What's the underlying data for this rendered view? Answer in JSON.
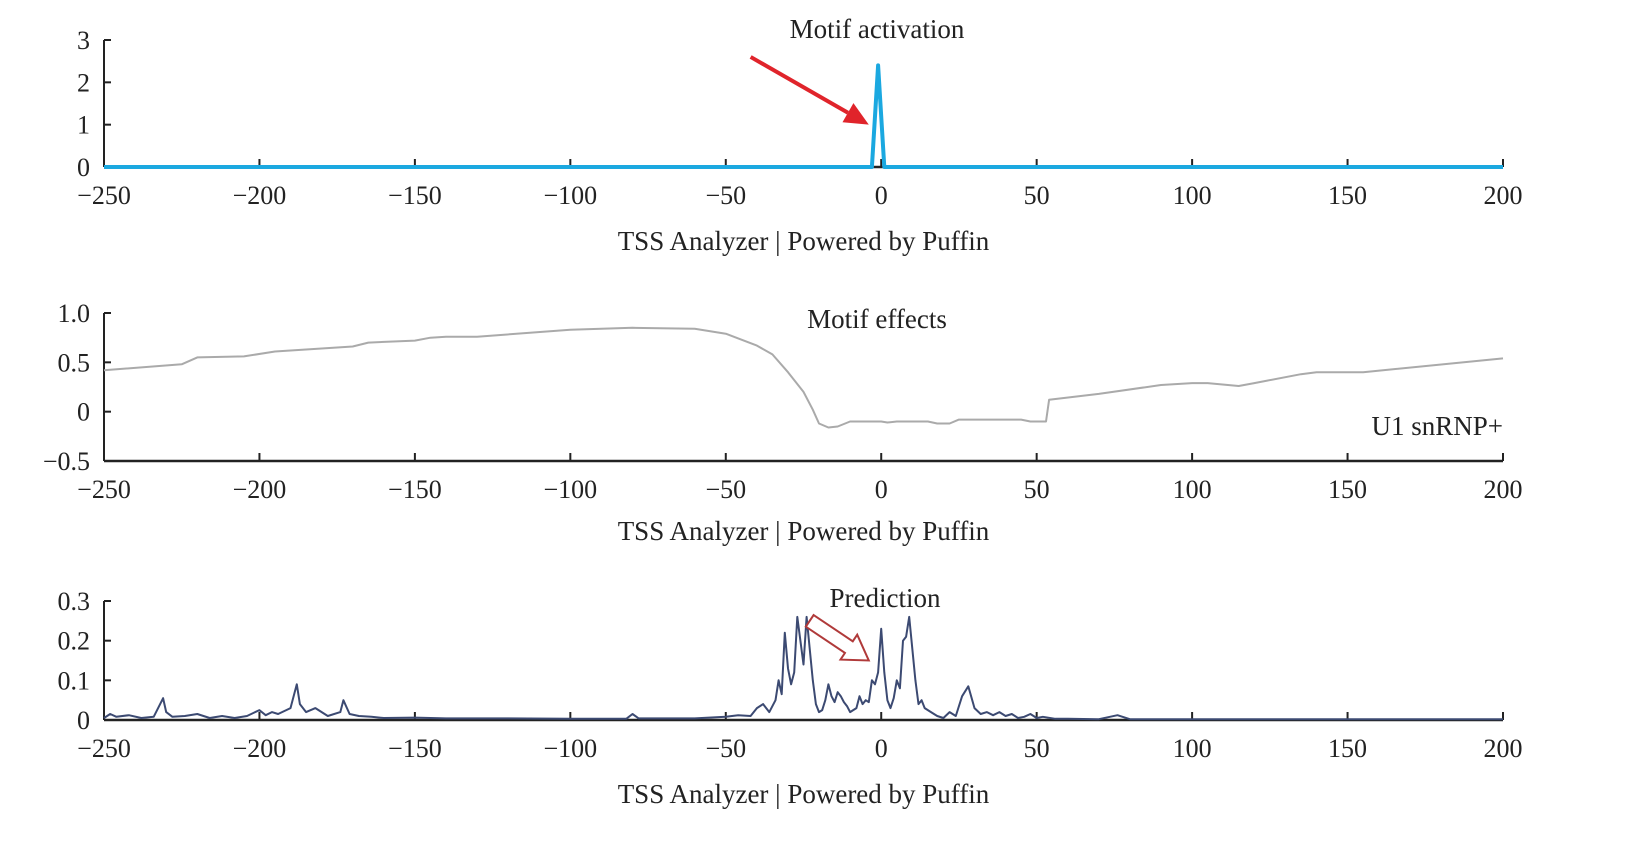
{
  "chart_data": [
    {
      "type": "line",
      "title": "Motif activation",
      "xlabel": "TSS Analyzer | Powered by Puffin",
      "ylabel": "",
      "xlim": [
        -250,
        200
      ],
      "ylim": [
        0,
        3
      ],
      "xticks": [
        -250,
        -200,
        -150,
        -100,
        -50,
        0,
        50,
        100,
        150,
        200
      ],
      "yticks": [
        0,
        1,
        2,
        3
      ],
      "ytick_labels": [
        "0",
        "1",
        "2",
        "3"
      ],
      "color": "#1ba8e0",
      "x": [
        -250,
        -3,
        -1,
        1,
        200
      ],
      "y": [
        0,
        0,
        2.4,
        0,
        0
      ],
      "annotation": {
        "type": "arrow",
        "color": "#e0242b",
        "from": [
          -42,
          2.6
        ],
        "to": [
          -4,
          1.0
        ]
      }
    },
    {
      "type": "line",
      "title": "Motif effects",
      "xlabel": "TSS Analyzer | Powered by Puffin",
      "legend": "U1 snRNP+",
      "legend_position": "bottom-right",
      "xlim": [
        -250,
        200
      ],
      "ylim": [
        -0.5,
        1.0
      ],
      "xticks": [
        -250,
        -200,
        -150,
        -100,
        -50,
        0,
        50,
        100,
        150,
        200
      ],
      "yticks": [
        -0.5,
        0,
        0.5,
        1.0
      ],
      "ytick_labels": [
        "−0.5",
        "0",
        "0.5",
        "1.0"
      ],
      "color": "#aaaaaa",
      "x": [
        -250,
        -225,
        -220,
        -205,
        -195,
        -170,
        -165,
        -150,
        -145,
        -140,
        -130,
        -100,
        -80,
        -60,
        -50,
        -40,
        -35,
        -30,
        -25,
        -22,
        -20,
        -17,
        -14,
        -10,
        -5,
        0,
        2,
        5,
        15,
        18,
        22,
        25,
        45,
        48,
        53,
        54,
        70,
        90,
        100,
        105,
        115,
        120,
        135,
        140,
        155,
        200
      ],
      "y": [
        0.42,
        0.48,
        0.55,
        0.56,
        0.61,
        0.66,
        0.7,
        0.72,
        0.75,
        0.76,
        0.76,
        0.83,
        0.85,
        0.84,
        0.79,
        0.67,
        0.58,
        0.4,
        0.2,
        0.02,
        -0.12,
        -0.16,
        -0.15,
        -0.1,
        -0.1,
        -0.1,
        -0.11,
        -0.1,
        -0.1,
        -0.12,
        -0.12,
        -0.08,
        -0.08,
        -0.1,
        -0.1,
        0.12,
        0.18,
        0.27,
        0.29,
        0.29,
        0.26,
        0.29,
        0.38,
        0.4,
        0.4,
        0.54
      ]
    },
    {
      "type": "line",
      "title": "Prediction",
      "xlabel": "TSS Analyzer | Powered by Puffin",
      "xlim": [
        -250,
        200
      ],
      "ylim": [
        0,
        0.3
      ],
      "xticks": [
        -250,
        -200,
        -150,
        -100,
        -50,
        0,
        50,
        100,
        150,
        200
      ],
      "yticks": [
        0,
        0.1,
        0.2,
        0.3
      ],
      "ytick_labels": [
        "0",
        "0.1",
        "0.2",
        "0.3"
      ],
      "color": "#3c4a72",
      "x": [
        -250,
        -248,
        -246,
        -242,
        -238,
        -234,
        -231,
        -230,
        -228,
        -224,
        -220,
        -216,
        -212,
        -208,
        -204,
        -200,
        -198,
        -196,
        -194,
        -190,
        -188,
        -187,
        -185,
        -182,
        -178,
        -174,
        -173,
        -171,
        -168,
        -164,
        -160,
        -150,
        -140,
        -120,
        -100,
        -82,
        -80,
        -78,
        -60,
        -50,
        -46,
        -42,
        -40,
        -38,
        -36,
        -34,
        -33,
        -32,
        -31,
        -30,
        -29,
        -28,
        -27,
        -26,
        -25,
        -24,
        -23,
        -22,
        -21,
        -20,
        -19,
        -18,
        -17,
        -16,
        -15,
        -14,
        -13,
        -12,
        -11,
        -10,
        -9,
        -8,
        -7,
        -6,
        -5,
        -4,
        -3,
        -2,
        -1,
        0,
        1,
        2,
        3,
        4,
        5,
        6,
        7,
        8,
        9,
        10,
        11,
        12,
        13,
        14,
        16,
        18,
        20,
        22,
        24,
        26,
        28,
        30,
        32,
        34,
        36,
        38,
        40,
        42,
        44,
        46,
        48,
        50,
        52,
        56,
        60,
        70,
        76,
        80,
        90,
        100,
        200
      ],
      "y": [
        0.005,
        0.015,
        0.008,
        0.012,
        0.005,
        0.008,
        0.055,
        0.02,
        0.008,
        0.01,
        0.015,
        0.005,
        0.01,
        0.005,
        0.01,
        0.025,
        0.012,
        0.02,
        0.015,
        0.03,
        0.09,
        0.04,
        0.02,
        0.03,
        0.01,
        0.02,
        0.05,
        0.015,
        0.01,
        0.008,
        0.005,
        0.006,
        0.004,
        0.004,
        0.003,
        0.003,
        0.015,
        0.004,
        0.004,
        0.008,
        0.012,
        0.01,
        0.03,
        0.04,
        0.02,
        0.05,
        0.1,
        0.065,
        0.22,
        0.13,
        0.09,
        0.12,
        0.26,
        0.2,
        0.14,
        0.26,
        0.18,
        0.1,
        0.04,
        0.02,
        0.025,
        0.05,
        0.09,
        0.06,
        0.045,
        0.07,
        0.06,
        0.045,
        0.035,
        0.02,
        0.025,
        0.03,
        0.06,
        0.04,
        0.05,
        0.045,
        0.1,
        0.09,
        0.12,
        0.23,
        0.12,
        0.05,
        0.03,
        0.055,
        0.1,
        0.08,
        0.2,
        0.21,
        0.26,
        0.18,
        0.1,
        0.04,
        0.05,
        0.03,
        0.02,
        0.01,
        0.005,
        0.02,
        0.01,
        0.06,
        0.085,
        0.03,
        0.015,
        0.02,
        0.012,
        0.02,
        0.01,
        0.015,
        0.005,
        0.008,
        0.015,
        0.005,
        0.008,
        0.003,
        0.003,
        0.002,
        0.012,
        0.002,
        0.002,
        0.002,
        0.002
      ],
      "annotation": {
        "type": "hollow-arrow",
        "color": "#b03a3a",
        "from": [
          -23,
          0.25
        ],
        "to": [
          -4,
          0.15
        ]
      }
    }
  ]
}
